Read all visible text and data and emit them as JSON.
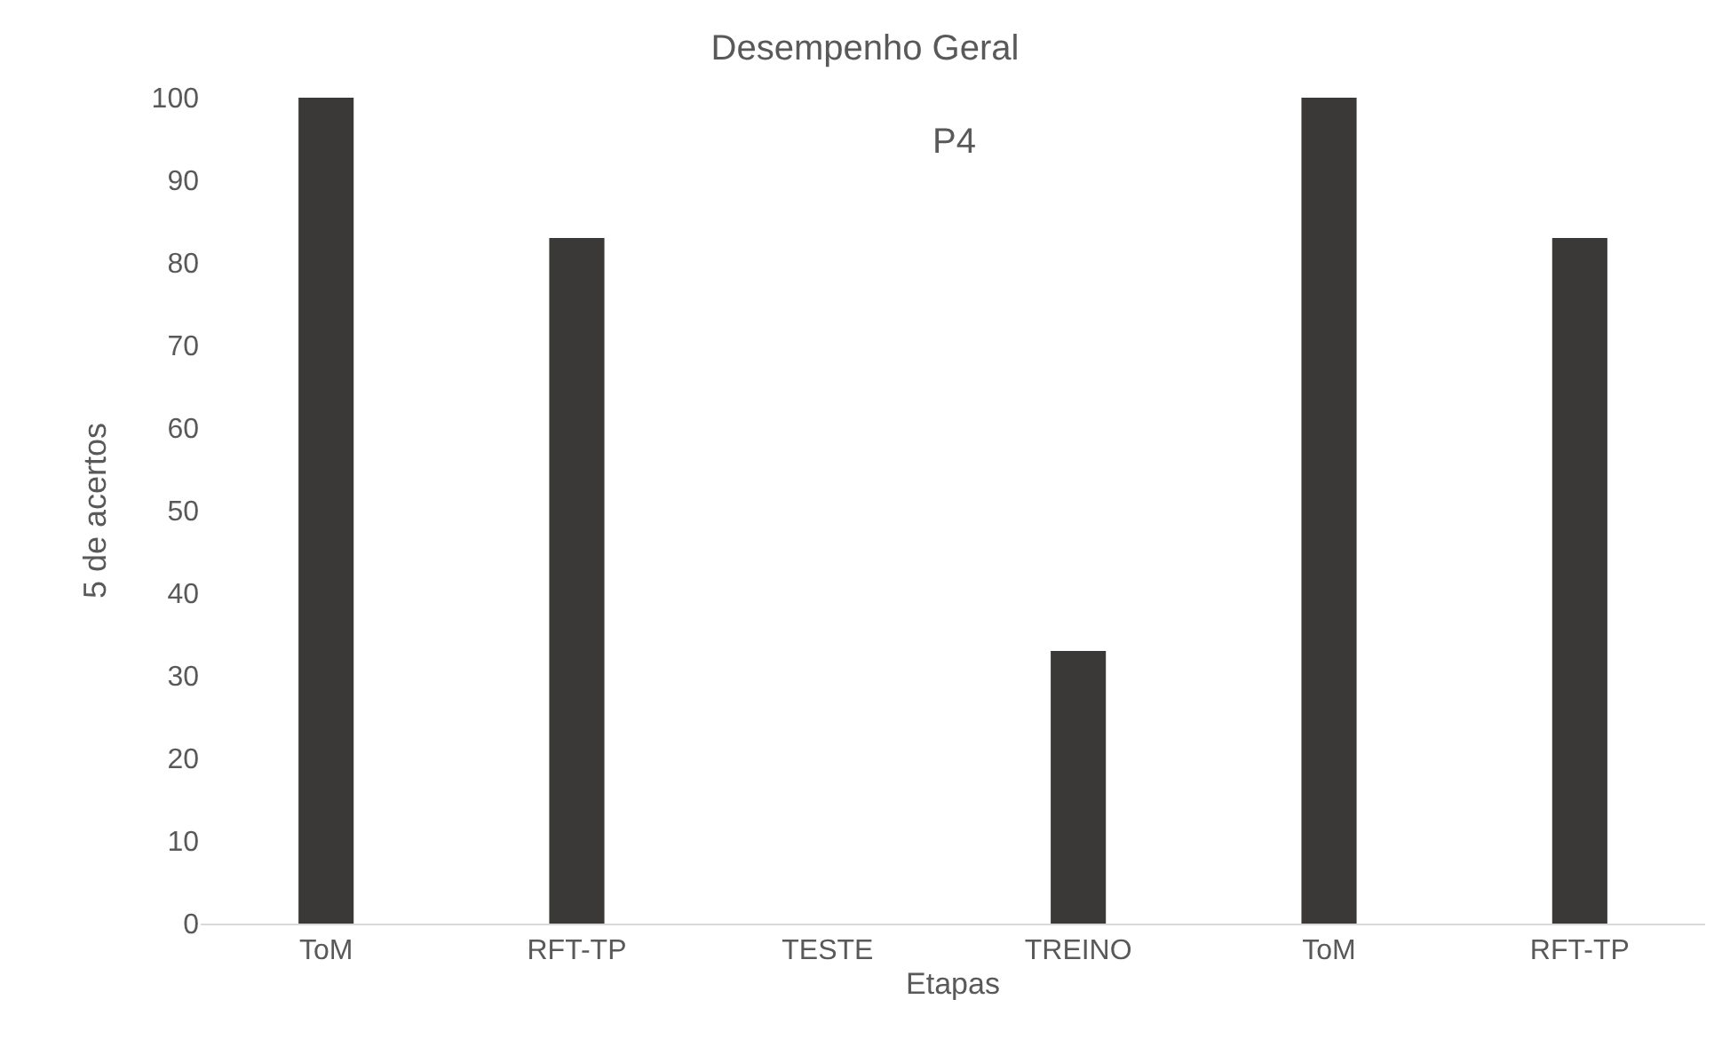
{
  "chart_data": {
    "type": "bar",
    "title": "Desempenho Geral",
    "subtitle": "P4",
    "xlabel": "Etapas",
    "ylabel": "5 de acertos",
    "categories": [
      "ToM",
      "RFT-TP",
      "TESTE",
      "TREINO",
      "ToM",
      "RFT-TP"
    ],
    "values": [
      100,
      83,
      0,
      33,
      100,
      83
    ],
    "color": "#3a3937",
    "ylim": [
      0,
      100
    ],
    "yticks": [
      0,
      10,
      20,
      30,
      40,
      50,
      60,
      70,
      80,
      90,
      100
    ],
    "grid": false
  }
}
